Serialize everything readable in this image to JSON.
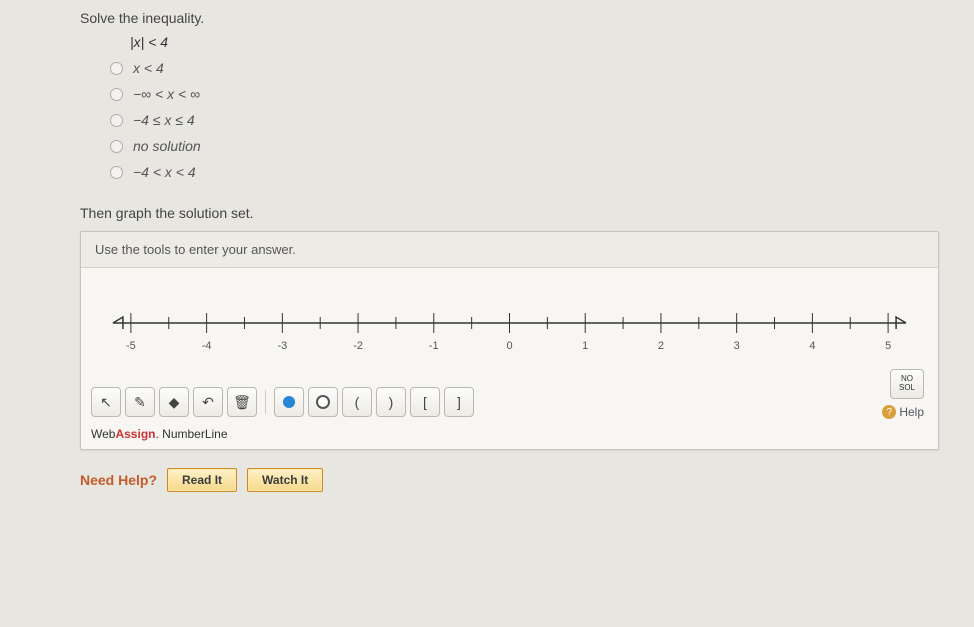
{
  "prompt": "Solve the inequality.",
  "inequality": "|x| < 4",
  "choices": [
    {
      "label": "x < 4"
    },
    {
      "label": "−∞ < x < ∞"
    },
    {
      "label": "−4 ≤ x ≤ 4"
    },
    {
      "label": "no solution"
    },
    {
      "label": "−4 < x < 4"
    }
  ],
  "graph_prompt": "Then graph the solution set.",
  "panel_header": "Use the tools to enter your answer.",
  "numberline": {
    "min": -5,
    "max": 5,
    "major_ticks": [
      -5,
      -4,
      -3,
      -2,
      -1,
      0,
      1,
      2,
      3,
      4,
      5
    ],
    "minor_step": 0.5,
    "axis_color": "#333333",
    "tick_color": "#333333",
    "label_color": "#555555",
    "background": "#ffffff"
  },
  "toolbar": {
    "pointer_glyph": "↖",
    "pencil_glyph": "✎",
    "eraser_glyph": "◆",
    "undo_glyph": "↶",
    "trash_glyph": "🗑",
    "paren_open": "(",
    "paren_close": ")",
    "bracket_open": "[",
    "bracket_close": "]"
  },
  "brand_web": "Web",
  "brand_assign": "Assign",
  "brand_rest": ". NumberLine",
  "nosol_line1": "NO",
  "nosol_line2": "SOL",
  "help_label": "Help",
  "need_help_label": "Need Help?",
  "read_it_label": "Read It",
  "watch_it_label": "Watch It"
}
